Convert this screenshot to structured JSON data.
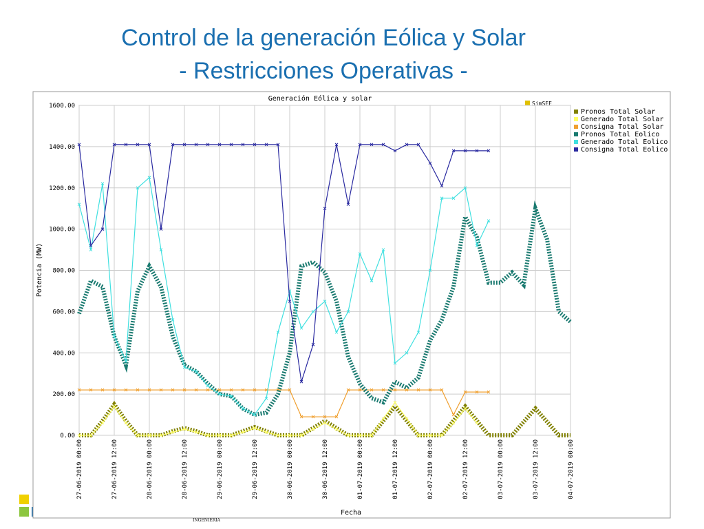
{
  "slide_title": [
    "Control de la generación Eólica y Solar",
    "- Restricciones Operativas -"
  ],
  "footer_text": "INGENIERIA",
  "chart_data": {
    "type": "line",
    "title": "Generación Eólica y solar",
    "badge": "SimSEE",
    "y_label": "Potencia (MW)",
    "x_label": "Fecha",
    "grid": true,
    "legend": "top-right",
    "xlim": [
      "27-06-2019 00:00",
      "04-07-2019 00:00"
    ],
    "xticks": [
      "27-06-2019 00:00",
      "27-06-2019 12:00",
      "28-06-2019 00:00",
      "28-06-2019 12:00",
      "29-06-2019 00:00",
      "29-06-2019 12:00",
      "30-06-2019 00:00",
      "30-06-2019 12:00",
      "01-07-2019 00:00",
      "01-07-2019 12:00",
      "02-07-2019 00:00",
      "02-07-2019 12:00",
      "03-07-2019 00:00",
      "03-07-2019 12:00",
      "04-07-2019 00:00"
    ],
    "ylim": [
      0,
      1600
    ],
    "yticks": [
      {
        "value": 0,
        "label": "0.00"
      },
      {
        "value": 200,
        "label": "200.00"
      },
      {
        "value": 400,
        "label": "400.00"
      },
      {
        "value": 600,
        "label": "600.00"
      },
      {
        "value": 800,
        "label": "800.00"
      },
      {
        "value": 1000,
        "label": "1000.00"
      },
      {
        "value": 1200,
        "label": "1200.00"
      },
      {
        "value": 1400,
        "label": "1400.00"
      },
      {
        "value": 1600,
        "label": "1600.00"
      }
    ],
    "x": [
      "27-06-2019 00:00",
      "27-06-2019 04:00",
      "27-06-2019 08:00",
      "27-06-2019 12:00",
      "27-06-2019 16:00",
      "27-06-2019 20:00",
      "28-06-2019 00:00",
      "28-06-2019 04:00",
      "28-06-2019 08:00",
      "28-06-2019 12:00",
      "28-06-2019 16:00",
      "28-06-2019 20:00",
      "29-06-2019 00:00",
      "29-06-2019 04:00",
      "29-06-2019 08:00",
      "29-06-2019 12:00",
      "29-06-2019 16:00",
      "29-06-2019 20:00",
      "30-06-2019 00:00",
      "30-06-2019 04:00",
      "30-06-2019 08:00",
      "30-06-2019 12:00",
      "30-06-2019 16:00",
      "30-06-2019 20:00",
      "01-07-2019 00:00",
      "01-07-2019 04:00",
      "01-07-2019 08:00",
      "01-07-2019 12:00",
      "01-07-2019 16:00",
      "01-07-2019 20:00",
      "02-07-2019 00:00",
      "02-07-2019 04:00",
      "02-07-2019 08:00",
      "02-07-2019 12:00",
      "02-07-2019 16:00",
      "02-07-2019 20:00",
      "03-07-2019 00:00",
      "03-07-2019 04:00",
      "03-07-2019 08:00",
      "03-07-2019 12:00",
      "03-07-2019 16:00",
      "03-07-2019 20:00",
      "04-07-2019 00:00"
    ],
    "series": [
      {
        "name": "Pronos Total Solar",
        "color": "#808000",
        "line_style": "dotted",
        "values": [
          0,
          0,
          70,
          150,
          70,
          0,
          0,
          0,
          20,
          35,
          20,
          0,
          0,
          0,
          20,
          40,
          20,
          0,
          0,
          0,
          35,
          70,
          35,
          0,
          0,
          0,
          70,
          140,
          70,
          0,
          0,
          0,
          70,
          140,
          70,
          0,
          0,
          0,
          65,
          130,
          65,
          0,
          0
        ]
      },
      {
        "name": "Generado Total Solar",
        "color": "#ffff66",
        "line_style": "marker",
        "values": [
          0,
          0,
          60,
          140,
          60,
          0,
          0,
          0,
          15,
          30,
          15,
          0,
          0,
          0,
          15,
          35,
          15,
          0,
          0,
          0,
          30,
          60,
          30,
          0,
          0,
          0,
          80,
          160,
          80,
          0,
          0,
          0,
          60,
          130,
          60,
          null,
          null,
          null,
          null,
          null,
          null,
          null,
          null
        ]
      },
      {
        "name": "Consigna Total Solar",
        "color": "#f0a030",
        "line_style": "marker",
        "values": [
          220,
          220,
          220,
          220,
          220,
          220,
          220,
          220,
          220,
          220,
          220,
          220,
          220,
          220,
          220,
          220,
          220,
          220,
          220,
          90,
          90,
          90,
          90,
          220,
          220,
          220,
          220,
          220,
          220,
          220,
          220,
          220,
          100,
          210,
          210,
          210,
          null,
          null,
          null,
          null,
          null,
          null,
          null
        ]
      },
      {
        "name": "Pronos Total Eolico",
        "color": "#1a7a70",
        "line_style": "dotted",
        "values": [
          590,
          750,
          720,
          480,
          340,
          700,
          820,
          720,
          480,
          340,
          310,
          250,
          200,
          190,
          130,
          100,
          110,
          200,
          400,
          820,
          840,
          790,
          650,
          380,
          250,
          180,
          160,
          260,
          230,
          280,
          460,
          560,
          720,
          1060,
          960,
          740,
          740,
          790,
          730,
          1100,
          950,
          600,
          550
        ]
      },
      {
        "name": "Generado Total Eolico",
        "color": "#40e0e0",
        "line_style": "marker",
        "values": [
          1120,
          900,
          1220,
          480,
          360,
          1200,
          1250,
          900,
          560,
          330,
          310,
          240,
          200,
          190,
          130,
          100,
          180,
          500,
          700,
          520,
          600,
          650,
          500,
          600,
          880,
          750,
          900,
          350,
          400,
          500,
          800,
          1150,
          1150,
          1200,
          920,
          1040,
          null,
          null,
          null,
          null,
          null,
          null,
          null
        ]
      },
      {
        "name": "Consigna Total Eolico",
        "color": "#2a2aa0",
        "line_style": "marker",
        "values": [
          1410,
          920,
          1000,
          1410,
          1410,
          1410,
          1410,
          1000,
          1410,
          1410,
          1410,
          1410,
          1410,
          1410,
          1410,
          1410,
          1410,
          1410,
          650,
          260,
          440,
          1100,
          1410,
          1120,
          1410,
          1410,
          1410,
          1380,
          1410,
          1410,
          1320,
          1210,
          1380,
          1380,
          1380,
          1380,
          null,
          null,
          null,
          null,
          null,
          null,
          null
        ]
      }
    ]
  }
}
